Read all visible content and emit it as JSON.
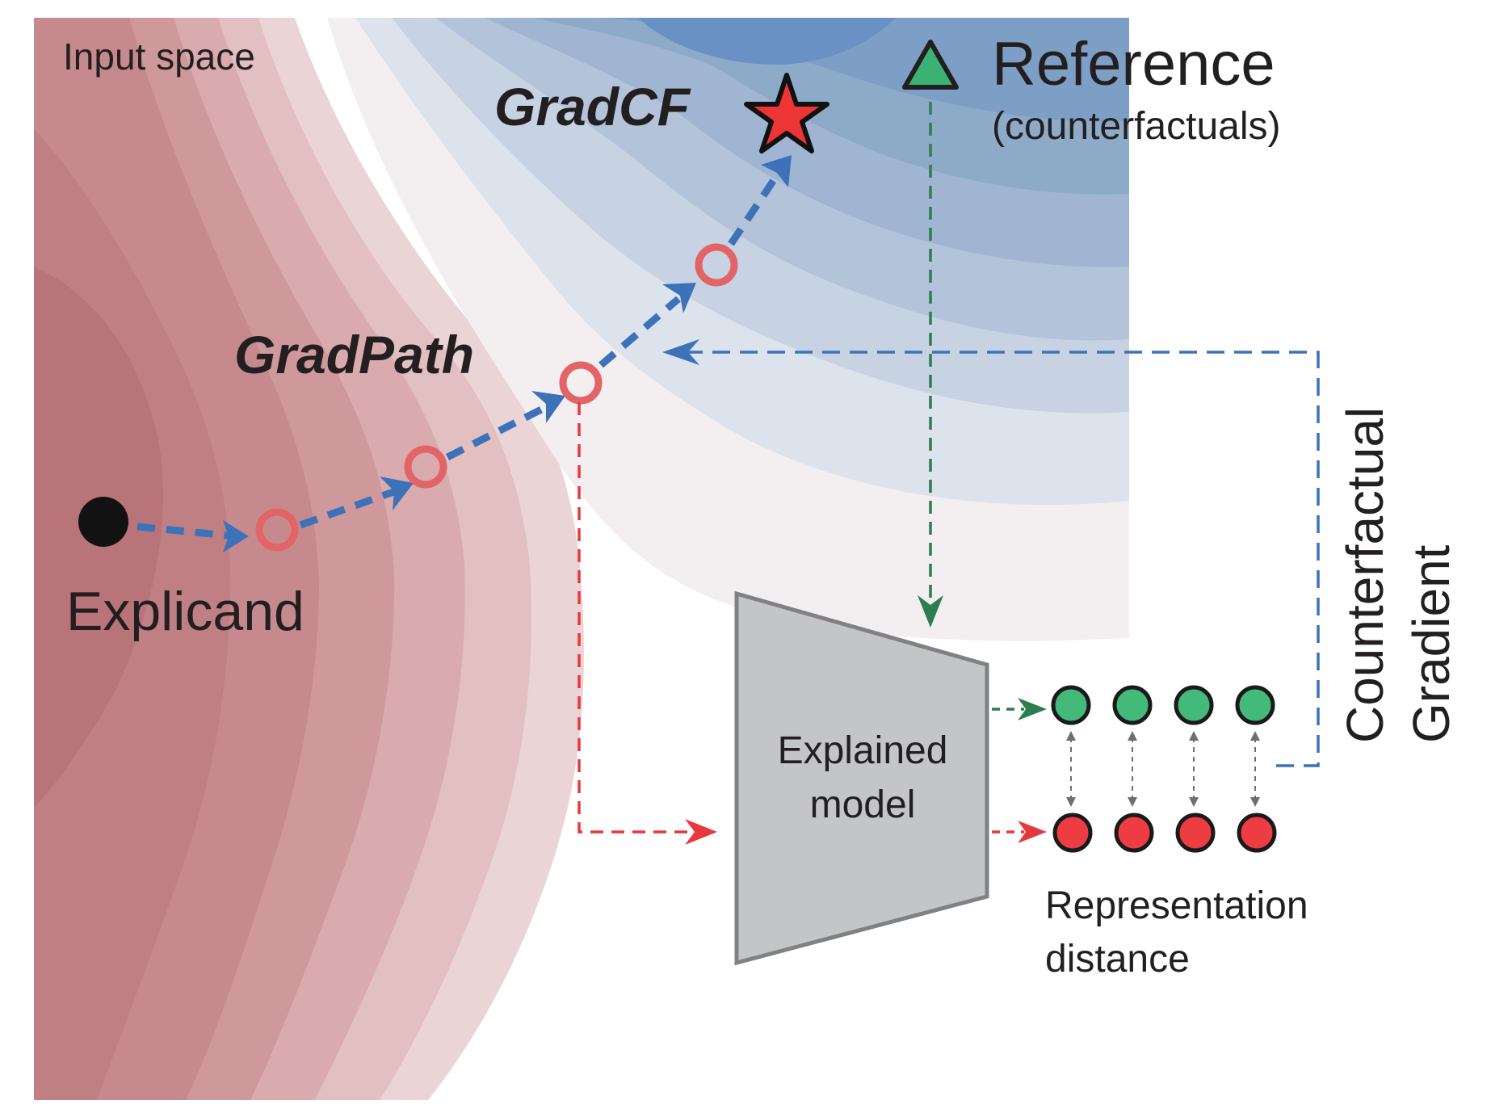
{
  "labels": {
    "input_space": "Input space",
    "gradcf": "GradCF",
    "reference": "Reference",
    "reference_sub": "(counterfactuals)",
    "gradpath": "GradPath",
    "explicand": "Explicand",
    "model_line1": "Explained",
    "model_line2": "model",
    "rep_line1": "Representation",
    "rep_line2": "distance",
    "gradient_line1": "Counterfactual",
    "gradient_line2": "Gradient"
  },
  "colors": {
    "red_region": "#b9777b",
    "blue_region": "#6a91c4",
    "path_blue": "#3d72b8",
    "ring_red": "#e36466",
    "star_red": "#ee3536",
    "triangle_green": "#3bb273",
    "arrow_green": "#2e7d4f",
    "arrow_red": "#e8383d",
    "model_gray": "#c4c5c7",
    "rep_green": "#43b97a",
    "rep_red": "#ee3d42"
  },
  "representation": {
    "reference_units": 4,
    "explicand_units": 4
  }
}
